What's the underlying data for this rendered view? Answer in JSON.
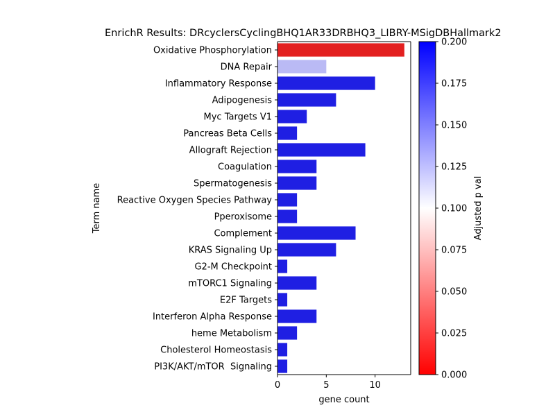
{
  "chart_data": {
    "type": "bar",
    "orientation": "horizontal",
    "title": "EnrichR Results: DRcyclersCyclingBHQ1AR33DRBHQ3_LIBRY-MSigDBHallmark2",
    "xlabel": "gene count",
    "ylabel": "Term name",
    "xlim": [
      0,
      13.65
    ],
    "xticks": [
      0,
      5,
      10
    ],
    "categories": [
      "Oxidative Phosphorylation",
      "DNA Repair",
      "Inflammatory Response",
      "Adipogenesis",
      "Myc Targets V1",
      "Pancreas Beta Cells",
      "Allograft Rejection",
      "Coagulation",
      "Spermatogenesis",
      "Reactive Oxygen Species Pathway",
      "Pperoxisome",
      "Complement",
      "KRAS Signaling Up",
      "G2-M Checkpoint",
      "mTORC1 Signaling",
      "E2F Targets",
      "Interferon Alpha Response",
      "heme Metabolism",
      "Cholesterol Homeostasis",
      "PI3K/AKT/mTOR  Signaling"
    ],
    "values": [
      13,
      5,
      10,
      6,
      3,
      2,
      9,
      4,
      4,
      2,
      2,
      8,
      6,
      1,
      4,
      1,
      4,
      2,
      1,
      1
    ],
    "bar_colors": [
      "#e32020",
      "#babaf5",
      "#1f1fe3",
      "#1f1fe3",
      "#1f1fe3",
      "#1f1fe3",
      "#1f1fe3",
      "#1f1fe3",
      "#1f1fe3",
      "#1f1fe3",
      "#1f1fe3",
      "#1f1fe3",
      "#1f1fe3",
      "#1f1fe3",
      "#1f1fe3",
      "#1f1fe3",
      "#1f1fe3",
      "#1f1fe3",
      "#1f1fe3",
      "#1f1fe3"
    ],
    "colorbar": {
      "label": "Adjusted p val",
      "range": [
        0,
        0.2
      ],
      "ticks": [
        "0.000",
        "0.025",
        "0.050",
        "0.075",
        "0.100",
        "0.125",
        "0.150",
        "0.175",
        "0.200"
      ],
      "colors": [
        "#ff0000",
        "#ffffff",
        "#0000ff"
      ]
    }
  }
}
